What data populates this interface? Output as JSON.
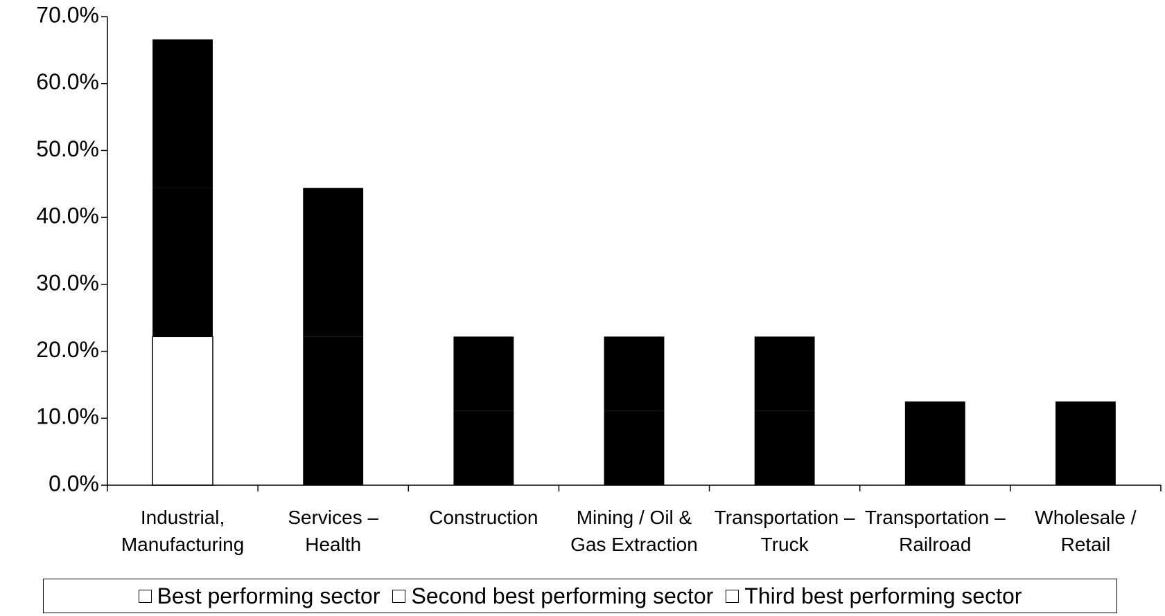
{
  "chart_data": {
    "type": "stacked_bar",
    "categories": [
      "Industrial, Manufacturing",
      "Services – Health",
      "Construction",
      "Mining / Oil & Gas Extraction",
      "Transportation – Truck",
      "Transportation – Railroad",
      "Wholesale / Retail"
    ],
    "series": [
      {
        "name": "Best performing sector",
        "color": "#ffffff",
        "values": [
          22.2,
          0,
          0,
          0,
          0,
          0,
          0
        ]
      },
      {
        "name": "Second best performing sector",
        "color": "#000000",
        "values": [
          22.2,
          22.2,
          11.1,
          11.1,
          11.1,
          0,
          0
        ]
      },
      {
        "name": "Third best performing sector",
        "color": "#000000",
        "values": [
          22.2,
          22.2,
          11.1,
          11.1,
          11.1,
          12.5,
          12.5
        ]
      }
    ],
    "ylim": [
      0,
      70
    ],
    "yticks": [
      {
        "value": 0,
        "label": "0.0%"
      },
      {
        "value": 10,
        "label": "10.0%"
      },
      {
        "value": 20,
        "label": "20.0%"
      },
      {
        "value": 30,
        "label": "30.0%"
      },
      {
        "value": 40,
        "label": "40.0%"
      },
      {
        "value": 50,
        "label": "50.0%"
      },
      {
        "value": 60,
        "label": "60.0%"
      },
      {
        "value": 70,
        "label": "70.0%"
      }
    ],
    "legend": "bottom"
  }
}
